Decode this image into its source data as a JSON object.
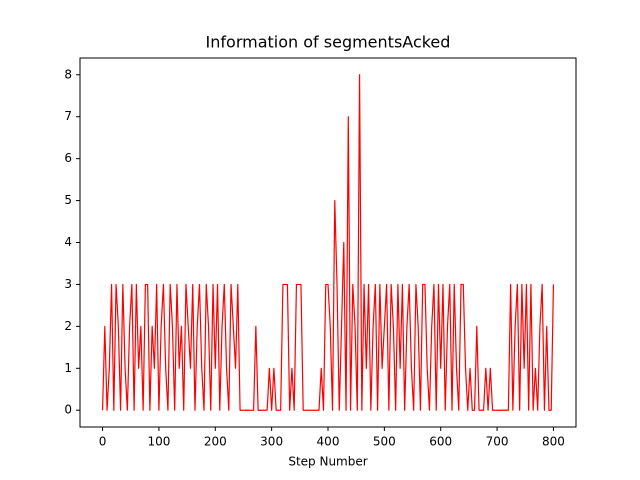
{
  "chart_data": {
    "type": "line",
    "title": "Information of segmentsAcked",
    "xlabel": "Step Number",
    "color": "#ff0000",
    "xlim": [
      -40,
      840
    ],
    "ylim": [
      -0.4,
      8.4
    ],
    "xticks": [
      0,
      100,
      200,
      300,
      400,
      500,
      600,
      700,
      800
    ],
    "yticks": [
      0,
      1,
      2,
      3,
      4,
      5,
      6,
      7,
      8
    ],
    "x": [
      0,
      4,
      8,
      12,
      16,
      20,
      24,
      28,
      32,
      36,
      40,
      44,
      48,
      52,
      56,
      60,
      64,
      68,
      72,
      76,
      80,
      84,
      88,
      92,
      96,
      100,
      104,
      108,
      112,
      116,
      120,
      124,
      128,
      132,
      136,
      140,
      144,
      148,
      152,
      156,
      160,
      164,
      168,
      172,
      176,
      180,
      184,
      188,
      192,
      196,
      200,
      204,
      208,
      212,
      216,
      220,
      224,
      228,
      232,
      236,
      240,
      244,
      248,
      252,
      256,
      260,
      264,
      268,
      272,
      276,
      280,
      284,
      288,
      292,
      296,
      300,
      304,
      308,
      312,
      316,
      320,
      324,
      328,
      332,
      336,
      340,
      344,
      348,
      352,
      356,
      360,
      364,
      368,
      372,
      376,
      380,
      384,
      388,
      392,
      396,
      400,
      404,
      408,
      412,
      416,
      420,
      424,
      428,
      432,
      436,
      440,
      444,
      448,
      452,
      456,
      460,
      464,
      468,
      472,
      476,
      480,
      484,
      488,
      492,
      496,
      500,
      504,
      508,
      512,
      516,
      520,
      524,
      528,
      532,
      536,
      540,
      544,
      548,
      552,
      556,
      560,
      564,
      568,
      572,
      576,
      580,
      584,
      588,
      592,
      596,
      600,
      604,
      608,
      612,
      616,
      620,
      624,
      628,
      632,
      636,
      640,
      644,
      648,
      652,
      656,
      660,
      664,
      668,
      672,
      676,
      680,
      684,
      688,
      692,
      696,
      700,
      704,
      708,
      712,
      716,
      720,
      724,
      728,
      732,
      736,
      740,
      744,
      748,
      752,
      756,
      760,
      764,
      768,
      772,
      776,
      780,
      784,
      788,
      792,
      796,
      800
    ],
    "values": [
      0,
      2,
      0,
      1,
      3,
      0,
      3,
      2,
      0,
      3,
      1,
      0,
      2,
      3,
      0,
      3,
      1,
      2,
      0,
      3,
      3,
      0,
      2,
      1,
      3,
      0,
      2,
      3,
      1,
      0,
      3,
      2,
      0,
      3,
      1,
      2,
      0,
      3,
      2,
      1,
      3,
      0,
      2,
      3,
      1,
      0,
      3,
      2,
      0,
      3,
      1,
      3,
      0,
      2,
      3,
      1,
      0,
      3,
      2,
      1,
      3,
      0,
      0,
      0,
      0,
      0,
      0,
      0,
      2,
      0,
      0,
      0,
      0,
      0,
      1,
      0,
      1,
      0,
      0,
      0,
      3,
      3,
      3,
      0,
      1,
      0,
      3,
      3,
      3,
      0,
      0,
      0,
      0,
      0,
      0,
      0,
      0,
      1,
      0,
      3,
      3,
      2,
      0,
      5,
      3,
      0,
      2,
      4,
      0,
      7,
      0,
      3,
      2,
      0,
      8,
      0,
      3,
      1,
      3,
      0,
      2,
      3,
      0,
      3,
      1,
      2,
      3,
      0,
      3,
      2,
      0,
      3,
      1,
      3,
      0,
      2,
      3,
      1,
      0,
      3,
      2,
      0,
      3,
      3,
      1,
      0,
      2,
      3,
      0,
      3,
      1,
      3,
      0,
      2,
      3,
      0,
      3,
      1,
      0,
      3,
      3,
      1,
      0,
      1,
      0,
      0,
      2,
      0,
      0,
      0,
      1,
      0,
      1,
      0,
      0,
      0,
      0,
      0,
      0,
      0,
      0,
      3,
      0,
      2,
      3,
      0,
      3,
      1,
      3,
      0,
      3,
      0,
      1,
      0,
      2,
      3,
      0,
      2,
      0,
      0,
      3
    ]
  }
}
